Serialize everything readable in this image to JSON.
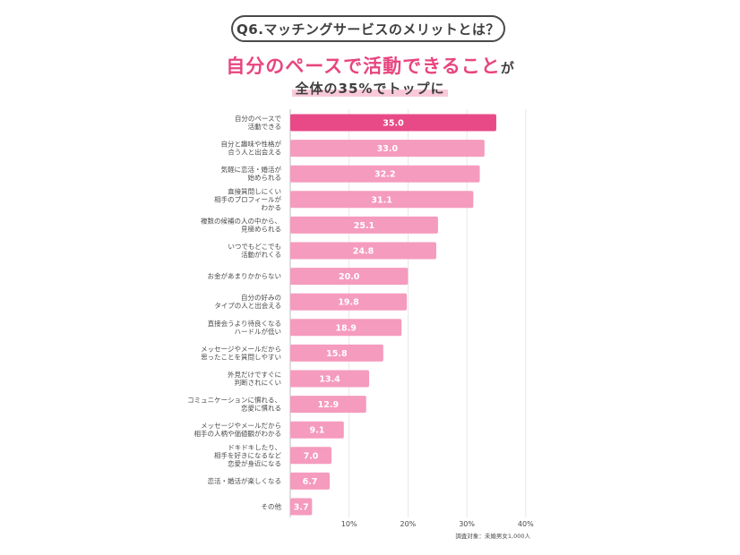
{
  "question": "Q6.マッチングサービスのメリットとは？",
  "headline": {
    "main": "自分のペースで活動できること",
    "suffix": "が",
    "sub": "全体の35%でトップに"
  },
  "colors": {
    "highlight": "#e84a87",
    "bar": "#f59bbd",
    "text": "#3f3f3f"
  },
  "note": "調査対象：未婚男女1,000人",
  "chart_data": {
    "type": "bar",
    "orientation": "horizontal",
    "categories": [
      [
        "自分のペースで",
        "活動できる"
      ],
      [
        "自分と趣味や性格が",
        "合う人と出会える"
      ],
      [
        "気軽に恋活・婚活が",
        "始められる"
      ],
      [
        "直接質問しにくい",
        "相手のプロフィールが",
        "わかる"
      ],
      [
        "複数の候補の人の中から、",
        "見極められる"
      ],
      [
        "いつでもどこでも",
        "活動がれくる"
      ],
      [
        "お金があまりかからない"
      ],
      [
        "自分の好みの",
        "タイプの人と出会える"
      ],
      [
        "直接会うより待良くなる",
        "ハードルが低い"
      ],
      [
        "メッセージやメールだから",
        "思ったことを質問しやすい"
      ],
      [
        "外見だけですぐに",
        "判断されにくい"
      ],
      [
        "コミュニケーションに慣れる、",
        "恋愛に慣れる"
      ],
      [
        "メッセージやメールだから",
        "相手の人柄や価値観がわかる"
      ],
      [
        "ドキドキしたり、",
        "相手を好きになるなど",
        "恋愛が身近になる"
      ],
      [
        "恋活・婚活が楽しくなる"
      ],
      [
        "その他"
      ]
    ],
    "values": [
      35.0,
      33.0,
      32.2,
      31.1,
      25.1,
      24.8,
      20.0,
      19.8,
      18.9,
      15.8,
      13.4,
      12.9,
      9.1,
      7.0,
      6.7,
      3.7
    ],
    "value_labels": [
      "35.0",
      "33.0",
      "32.2",
      "31.1",
      "25.1",
      "24.8",
      "20.0",
      "19.8",
      "18.9",
      "15.8",
      "13.4",
      "12.9",
      "9.1",
      "7.0",
      "6.7",
      "3.7"
    ],
    "xlim": [
      0,
      40
    ],
    "ticks": [
      10,
      20,
      30,
      40
    ],
    "tick_labels": [
      "10%",
      "20%",
      "30%",
      "40%"
    ],
    "grid": true
  }
}
